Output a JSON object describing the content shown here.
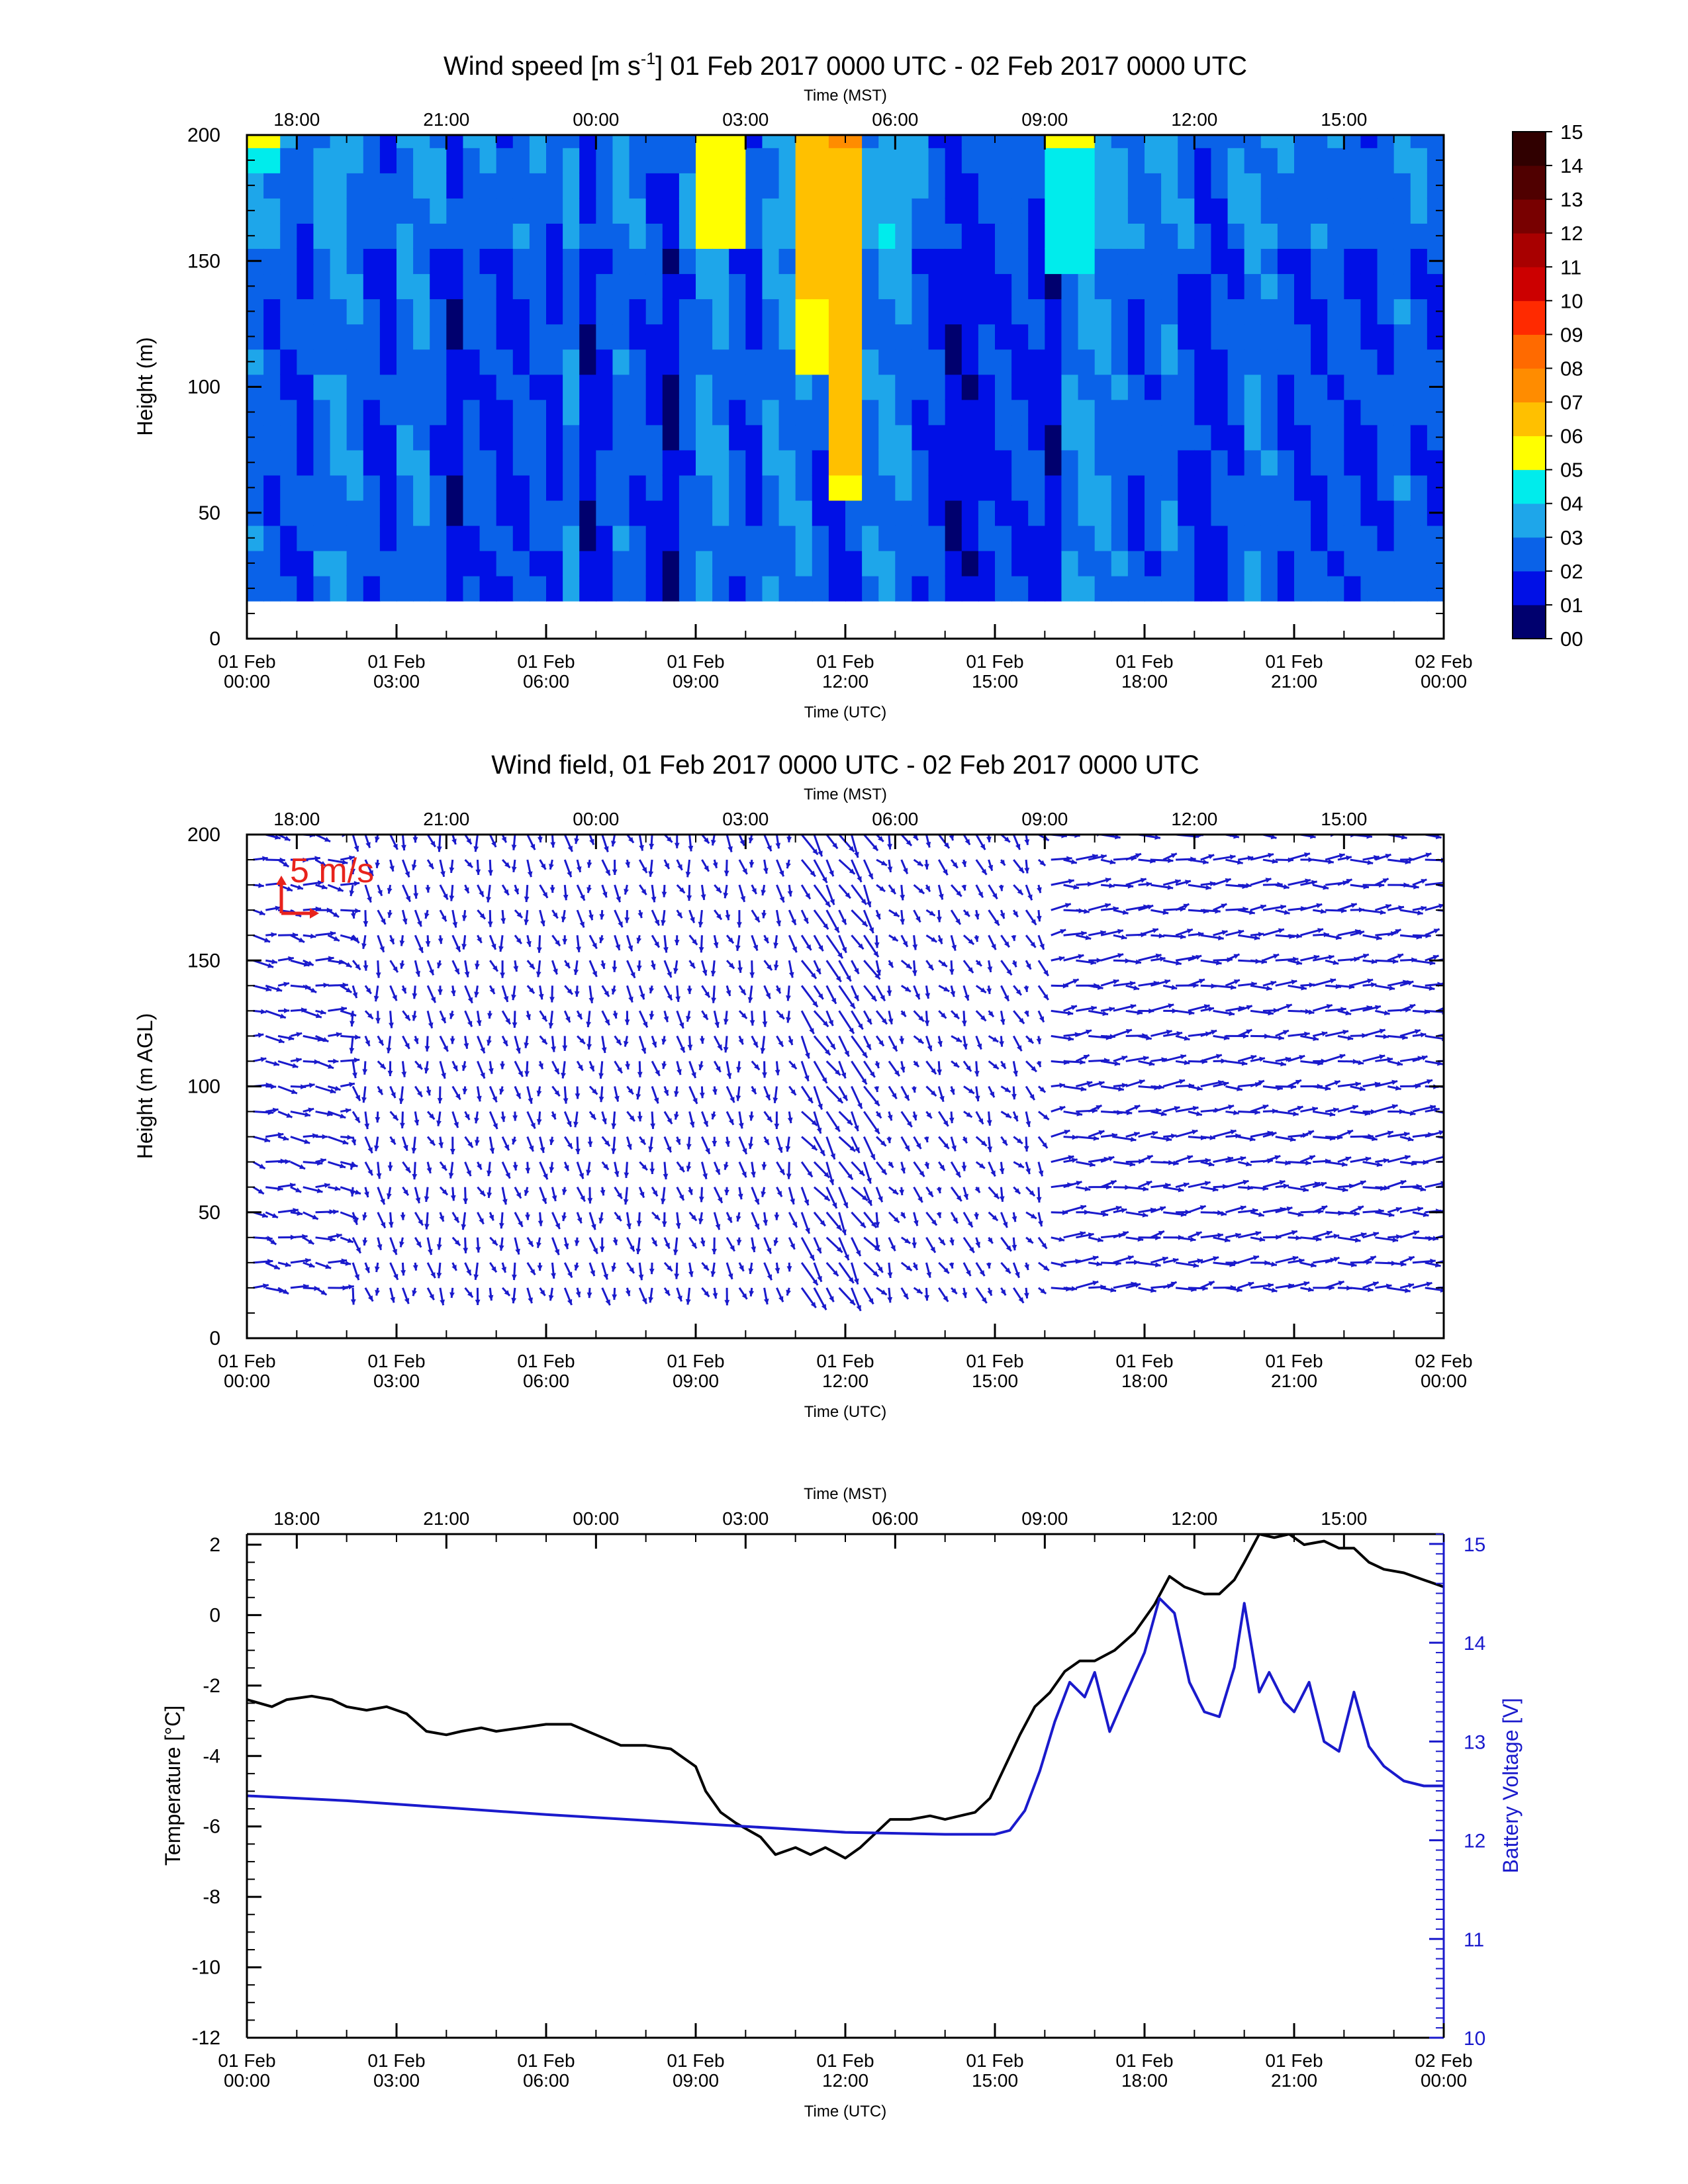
{
  "colors": {
    "axis": "#000000",
    "vector": "#1a1acc",
    "reference_vector": "#e8231c",
    "temperature_line": "#000000",
    "battery_line": "#1a1acc",
    "no_data": "#ffffff"
  },
  "colorbar": {
    "labels": [
      "00",
      "01",
      "02",
      "03",
      "04",
      "05",
      "06",
      "07",
      "08",
      "09",
      "10",
      "11",
      "12",
      "13",
      "14",
      "15"
    ],
    "colors": [
      "#00006e",
      "#0010e6",
      "#0a62e8",
      "#1ea6ea",
      "#00ecec",
      "#ffff00",
      "#ffc000",
      "#ff8c00",
      "#ff6a00",
      "#ff2a00",
      "#cc0000",
      "#a80000",
      "#780000",
      "#500000",
      "#300000"
    ]
  },
  "chart_data": [
    {
      "type": "heatmap",
      "title": "Wind speed [m s",
      "title_superscript": "-1",
      "title_rest": "] 01 Feb 2017 0000 UTC - 02 Feb 2017 0000 UTC",
      "xlabel": "Time (UTC)",
      "x2label": "Time (MST)",
      "ylabel": "Height (m)",
      "xlim_hours": [
        0,
        24
      ],
      "ylim": [
        0,
        200
      ],
      "x_ticks_utc": [
        [
          "01 Feb",
          "00:00"
        ],
        [
          "01 Feb",
          "03:00"
        ],
        [
          "01 Feb",
          "06:00"
        ],
        [
          "01 Feb",
          "09:00"
        ],
        [
          "01 Feb",
          "12:00"
        ],
        [
          "01 Feb",
          "15:00"
        ],
        [
          "01 Feb",
          "18:00"
        ],
        [
          "01 Feb",
          "21:00"
        ],
        [
          "02 Feb",
          "00:00"
        ]
      ],
      "x_ticks_mst": [
        "18:00",
        "21:00",
        "00:00",
        "03:00",
        "06:00",
        "09:00",
        "12:00",
        "15:00"
      ],
      "y_ticks": [
        "0",
        "50",
        "100",
        "150",
        "200"
      ],
      "y_tick_values": [
        0,
        50,
        100,
        150,
        200
      ],
      "heights_m": [
        20,
        30,
        40,
        50,
        60,
        70,
        80,
        90,
        100,
        110,
        120,
        130,
        140,
        150,
        160,
        170,
        180,
        190,
        200
      ],
      "colorbar_range": [
        0,
        15
      ],
      "column_mean_speed_ms": [
        2.6,
        2.4,
        2.2,
        1.8,
        2.6,
        3.0,
        2.6,
        2.0,
        1.6,
        2.6,
        2.8,
        2.4,
        1.4,
        2.4,
        2.2,
        1.8,
        2.2,
        2.4,
        1.6,
        2.8,
        1.4,
        2.0,
        2.6,
        2.4,
        1.8,
        1.2,
        2.4,
        3.0,
        3.2,
        2.4,
        1.8,
        2.8,
        3.0,
        2.8,
        2.2,
        1.6,
        2.0,
        2.6,
        3.2,
        3.0,
        2.4,
        1.8,
        1.2,
        1.4,
        1.6,
        2.0,
        2.2,
        1.8,
        1.4,
        2.8,
        3.2,
        3.0,
        2.6,
        2.2,
        2.4,
        2.6,
        2.2,
        1.6,
        1.8,
        2.4,
        2.8,
        2.6,
        2.2,
        2.0,
        2.2,
        2.4,
        2.0,
        1.8,
        2.2,
        2.6,
        2.4,
        2.0
      ],
      "high_wind_features": [
        {
          "time_hours": 0.2,
          "height_top": 200,
          "height_bottom": 185,
          "speed": 5.0
        },
        {
          "time_hours": 9.4,
          "height_top": 200,
          "height_bottom": 160,
          "speed": 5.5
        },
        {
          "time_hours": 11.3,
          "height_top": 200,
          "height_bottom": 110,
          "speed": 6.5
        },
        {
          "time_hours": 12.0,
          "height_top": 200,
          "height_bottom": 60,
          "speed": 7.0
        },
        {
          "time_hours": 16.4,
          "height_top": 200,
          "height_bottom": 150,
          "speed": 5.0
        }
      ]
    },
    {
      "type": "vector",
      "title": "Wind field, 01 Feb 2017 0000 UTC - 02 Feb 2017 0000 UTC",
      "xlabel": "Time (UTC)",
      "x2label": "Time (MST)",
      "ylabel": "Height (m AGL)",
      "xlim_hours": [
        0,
        24
      ],
      "ylim": [
        0,
        200
      ],
      "x_ticks_utc": [
        [
          "01 Feb",
          "00:00"
        ],
        [
          "01 Feb",
          "03:00"
        ],
        [
          "01 Feb",
          "06:00"
        ],
        [
          "01 Feb",
          "09:00"
        ],
        [
          "01 Feb",
          "12:00"
        ],
        [
          "01 Feb",
          "15:00"
        ],
        [
          "01 Feb",
          "18:00"
        ],
        [
          "01 Feb",
          "21:00"
        ],
        [
          "02 Feb",
          "00:00"
        ]
      ],
      "x_ticks_mst": [
        "18:00",
        "21:00",
        "00:00",
        "03:00",
        "06:00",
        "09:00",
        "12:00",
        "15:00"
      ],
      "y_ticks": [
        "0",
        "50",
        "100",
        "150",
        "200"
      ],
      "y_tick_values": [
        0,
        50,
        100,
        150,
        200
      ],
      "reference_vector_label": "5 m/s",
      "reference_vector_ms": 5,
      "heights_m": [
        20,
        30,
        40,
        50,
        60,
        70,
        80,
        90,
        100,
        110,
        120,
        130,
        140,
        150,
        160,
        170,
        180,
        190,
        200
      ],
      "regimes": [
        {
          "from_hours": 0,
          "to_hours": 2,
          "u": 2.2,
          "v": -0.3
        },
        {
          "from_hours": 2,
          "to_hours": 11,
          "u": 0.4,
          "v": -1.8
        },
        {
          "from_hours": 11,
          "to_hours": 12.5,
          "u": 1.6,
          "v": -2.6
        },
        {
          "from_hours": 12.5,
          "to_hours": 16,
          "u": 0.8,
          "v": -1.5
        },
        {
          "from_hours": 16,
          "to_hours": 24,
          "u": 2.6,
          "v": 0.2
        }
      ]
    },
    {
      "type": "line",
      "title": "",
      "xlabel": "Time (UTC)",
      "x2label": "Time (MST)",
      "ylabel": "Temperature [°C]",
      "y2label": "Battery Voltage [V]",
      "xlim_hours": [
        0,
        24
      ],
      "ylim": [
        -12,
        2.3
      ],
      "y2lim": [
        10,
        15.1
      ],
      "x_ticks_utc": [
        [
          "01 Feb",
          "00:00"
        ],
        [
          "01 Feb",
          "03:00"
        ],
        [
          "01 Feb",
          "06:00"
        ],
        [
          "01 Feb",
          "09:00"
        ],
        [
          "01 Feb",
          "12:00"
        ],
        [
          "01 Feb",
          "15:00"
        ],
        [
          "01 Feb",
          "18:00"
        ],
        [
          "01 Feb",
          "21:00"
        ],
        [
          "02 Feb",
          "00:00"
        ]
      ],
      "x_ticks_mst": [
        "18:00",
        "21:00",
        "00:00",
        "03:00",
        "06:00",
        "09:00",
        "12:00",
        "15:00"
      ],
      "y_ticks": [
        "-12",
        "-10",
        "-8",
        "-6",
        "-4",
        "-2",
        "0",
        "2"
      ],
      "y_tick_values": [
        -12,
        -10,
        -8,
        -6,
        -4,
        -2,
        0,
        2
      ],
      "y2_ticks": [
        "10",
        "11",
        "12",
        "13",
        "14",
        "15"
      ],
      "y2_tick_values": [
        10,
        11,
        12,
        13,
        14,
        15
      ],
      "series": [
        {
          "name": "Temperature",
          "axis": "left",
          "x": [
            0,
            0.5,
            0.8,
            1.3,
            1.7,
            2.0,
            2.4,
            2.8,
            3.2,
            3.6,
            4.0,
            4.3,
            4.7,
            5.0,
            5.5,
            6.0,
            6.5,
            7.0,
            7.5,
            8.0,
            8.5,
            9.0,
            9.2,
            9.5,
            9.8,
            10.3,
            10.6,
            11.0,
            11.3,
            11.6,
            12.0,
            12.3,
            12.6,
            12.9,
            13.3,
            13.7,
            14.0,
            14.3,
            14.6,
            14.9,
            15.2,
            15.5,
            15.8,
            16.1,
            16.4,
            16.7,
            17.0,
            17.4,
            17.8,
            18.2,
            18.5,
            18.8,
            19.2,
            19.5,
            19.8,
            20.0,
            20.3,
            20.6,
            20.9,
            21.2,
            21.6,
            21.9,
            22.2,
            22.5,
            22.8,
            23.2,
            23.6,
            24.0
          ],
          "values": [
            -2.4,
            -2.6,
            -2.4,
            -2.3,
            -2.4,
            -2.6,
            -2.7,
            -2.6,
            -2.8,
            -3.3,
            -3.4,
            -3.3,
            -3.2,
            -3.3,
            -3.2,
            -3.1,
            -3.1,
            -3.4,
            -3.7,
            -3.7,
            -3.8,
            -4.3,
            -5.0,
            -5.6,
            -5.9,
            -6.3,
            -6.8,
            -6.6,
            -6.8,
            -6.6,
            -6.9,
            -6.6,
            -6.2,
            -5.8,
            -5.8,
            -5.7,
            -5.8,
            -5.7,
            -5.6,
            -5.2,
            -4.3,
            -3.4,
            -2.6,
            -2.2,
            -1.6,
            -1.3,
            -1.3,
            -1.0,
            -0.5,
            0.3,
            1.1,
            0.8,
            0.6,
            0.6,
            1.0,
            1.5,
            2.3,
            2.2,
            2.3,
            2.0,
            2.1,
            1.9,
            1.9,
            1.5,
            1.3,
            1.2,
            1.0,
            0.8
          ]
        },
        {
          "name": "Battery Voltage",
          "axis": "right",
          "x": [
            0,
            2,
            4,
            6,
            8,
            10,
            12,
            14,
            15.0,
            15.3,
            15.6,
            15.9,
            16.2,
            16.5,
            16.8,
            17.0,
            17.3,
            17.6,
            18.0,
            18.3,
            18.6,
            18.9,
            19.2,
            19.5,
            19.8,
            20.0,
            20.3,
            20.5,
            20.8,
            21.0,
            21.3,
            21.6,
            21.9,
            22.2,
            22.5,
            22.8,
            23.2,
            23.6,
            24.0
          ],
          "values": [
            12.45,
            12.4,
            12.33,
            12.26,
            12.2,
            12.14,
            12.08,
            12.06,
            12.06,
            12.1,
            12.3,
            12.7,
            13.2,
            13.6,
            13.45,
            13.7,
            13.1,
            13.45,
            13.9,
            14.45,
            14.3,
            13.6,
            13.3,
            13.25,
            13.75,
            14.4,
            13.5,
            13.7,
            13.4,
            13.3,
            13.6,
            13.0,
            12.9,
            13.5,
            12.95,
            12.75,
            12.6,
            12.55,
            12.55
          ]
        }
      ]
    }
  ]
}
